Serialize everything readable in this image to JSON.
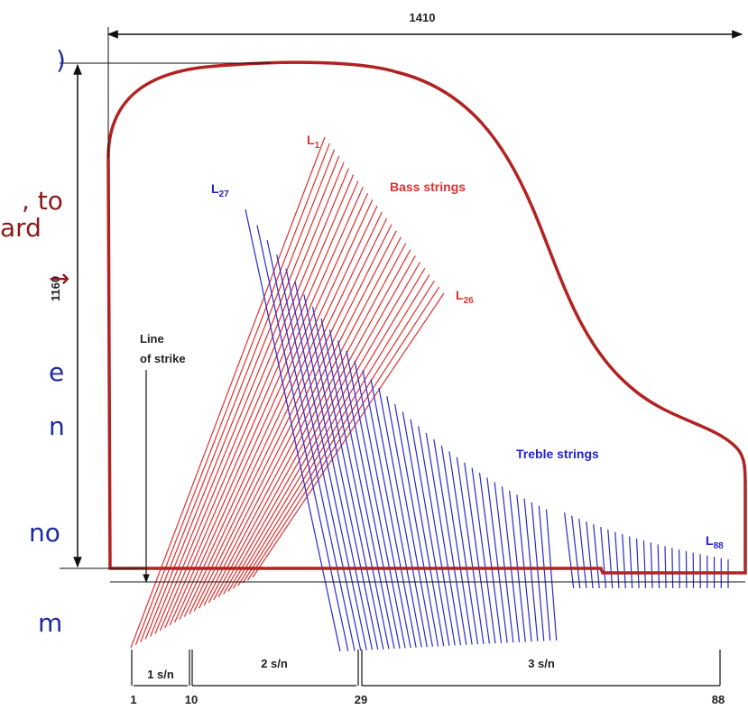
{
  "left_text_fragments": [
    ")",
    ", to",
    "ard",
    "→",
    "e",
    "n",
    "no",
    "m"
  ],
  "dimensions": {
    "width": "1410",
    "height": "1160"
  },
  "labels": {
    "bass_first": {
      "letter": "L",
      "sub": "1"
    },
    "bass_last": {
      "letter": "L",
      "sub": "26"
    },
    "treble_first": {
      "letter": "L",
      "sub": "27"
    },
    "treble_last": {
      "letter": "L",
      "sub": "88"
    },
    "bass_strings": "Bass strings",
    "treble_strings": "Treble strings",
    "line_of_strike": [
      "Line",
      "of strike"
    ]
  },
  "scale": {
    "segments": [
      "1 s/n",
      "2 s/n",
      "3 s/n"
    ],
    "keys": [
      "1",
      "10",
      "29",
      "88"
    ]
  }
}
